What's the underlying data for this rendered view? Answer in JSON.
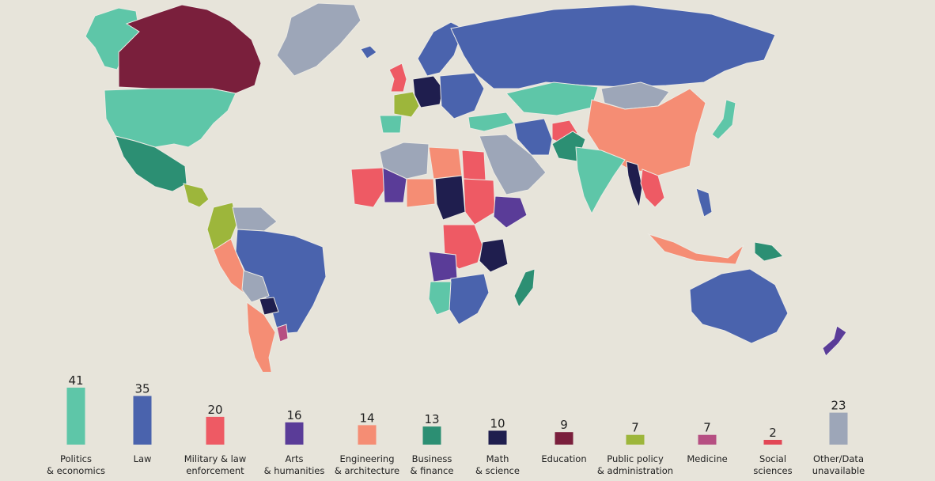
{
  "colors": {
    "background": "#E7E4DA",
    "border": "#ECEAE3",
    "politics": "#5EC6A8",
    "law": "#4A63AD",
    "military": "#EE5A64",
    "arts": "#5A3C98",
    "engineering": "#F58D74",
    "business": "#2C8F73",
    "math": "#1F1E4E",
    "education": "#7A1F3C",
    "public_policy": "#9DB63B",
    "medicine": "#B64F82",
    "social": "#E24756",
    "other": "#9DA6B8"
  },
  "legend": [
    {
      "key": "politics",
      "value": 41,
      "label": [
        "Politics",
        "& economics"
      ]
    },
    {
      "key": "law",
      "value": 35,
      "label": [
        "Law"
      ]
    },
    {
      "key": "military",
      "value": 20,
      "label": [
        "Military & law",
        "enforcement"
      ]
    },
    {
      "key": "arts",
      "value": 16,
      "label": [
        "Arts",
        "& humanities"
      ]
    },
    {
      "key": "engineering",
      "value": 14,
      "label": [
        "Engineering",
        "& architecture"
      ]
    },
    {
      "key": "business",
      "value": 13,
      "label": [
        "Business",
        "& finance"
      ]
    },
    {
      "key": "math",
      "value": 10,
      "label": [
        "Math",
        "& science"
      ]
    },
    {
      "key": "education",
      "value": 9,
      "label": [
        "Education"
      ]
    },
    {
      "key": "public_policy",
      "value": 7,
      "label": [
        "Public policy",
        "& administration"
      ]
    },
    {
      "key": "medicine",
      "value": 7,
      "label": [
        "Medicine"
      ]
    },
    {
      "key": "social",
      "value": 2,
      "label": [
        "Social",
        "sciences"
      ]
    },
    {
      "key": "other",
      "value": 23,
      "label": [
        "Other/Data",
        "unavailable"
      ]
    }
  ],
  "regions": [
    {
      "name": "alaska",
      "cat": "politics"
    },
    {
      "name": "canada",
      "cat": "education"
    },
    {
      "name": "greenland",
      "cat": "other"
    },
    {
      "name": "usa",
      "cat": "politics"
    },
    {
      "name": "mexico",
      "cat": "business"
    },
    {
      "name": "central-america",
      "cat": "public_policy"
    },
    {
      "name": "colombia",
      "cat": "public_policy"
    },
    {
      "name": "venezuela",
      "cat": "other"
    },
    {
      "name": "brazil",
      "cat": "law"
    },
    {
      "name": "peru",
      "cat": "engineering"
    },
    {
      "name": "bolivia",
      "cat": "other"
    },
    {
      "name": "paraguay",
      "cat": "math"
    },
    {
      "name": "argentina",
      "cat": "engineering"
    },
    {
      "name": "uruguay",
      "cat": "medicine"
    },
    {
      "name": "iceland",
      "cat": "law"
    },
    {
      "name": "uk",
      "cat": "military"
    },
    {
      "name": "scandinavia",
      "cat": "law"
    },
    {
      "name": "france",
      "cat": "public_policy"
    },
    {
      "name": "spain",
      "cat": "politics"
    },
    {
      "name": "central-europe",
      "cat": "math"
    },
    {
      "name": "eastern-europe",
      "cat": "law"
    },
    {
      "name": "russia",
      "cat": "law"
    },
    {
      "name": "kazakhstan",
      "cat": "politics"
    },
    {
      "name": "mongolia",
      "cat": "other"
    },
    {
      "name": "china",
      "cat": "engineering"
    },
    {
      "name": "japan",
      "cat": "politics"
    },
    {
      "name": "turkey",
      "cat": "politics"
    },
    {
      "name": "middle-east",
      "cat": "other"
    },
    {
      "name": "iran",
      "cat": "law"
    },
    {
      "name": "afghanistan",
      "cat": "military"
    },
    {
      "name": "pakistan",
      "cat": "business"
    },
    {
      "name": "india",
      "cat": "politics"
    },
    {
      "name": "myanmar",
      "cat": "math"
    },
    {
      "name": "indochina",
      "cat": "military"
    },
    {
      "name": "indonesia",
      "cat": "engineering"
    },
    {
      "name": "philippines",
      "cat": "law"
    },
    {
      "name": "png",
      "cat": "business"
    },
    {
      "name": "australia",
      "cat": "law"
    },
    {
      "name": "new-zealand",
      "cat": "arts"
    },
    {
      "name": "algeria",
      "cat": "other"
    },
    {
      "name": "libya",
      "cat": "engineering"
    },
    {
      "name": "egypt",
      "cat": "military"
    },
    {
      "name": "west-africa",
      "cat": "military"
    },
    {
      "name": "mali",
      "cat": "arts"
    },
    {
      "name": "niger",
      "cat": "engineering"
    },
    {
      "name": "chad",
      "cat": "math"
    },
    {
      "name": "sudan",
      "cat": "military"
    },
    {
      "name": "ethiopia",
      "cat": "arts"
    },
    {
      "name": "drc",
      "cat": "military"
    },
    {
      "name": "tanzania",
      "cat": "math"
    },
    {
      "name": "angola",
      "cat": "arts"
    },
    {
      "name": "southern-africa",
      "cat": "law"
    },
    {
      "name": "namibia",
      "cat": "politics"
    },
    {
      "name": "madagascar",
      "cat": "business"
    }
  ]
}
